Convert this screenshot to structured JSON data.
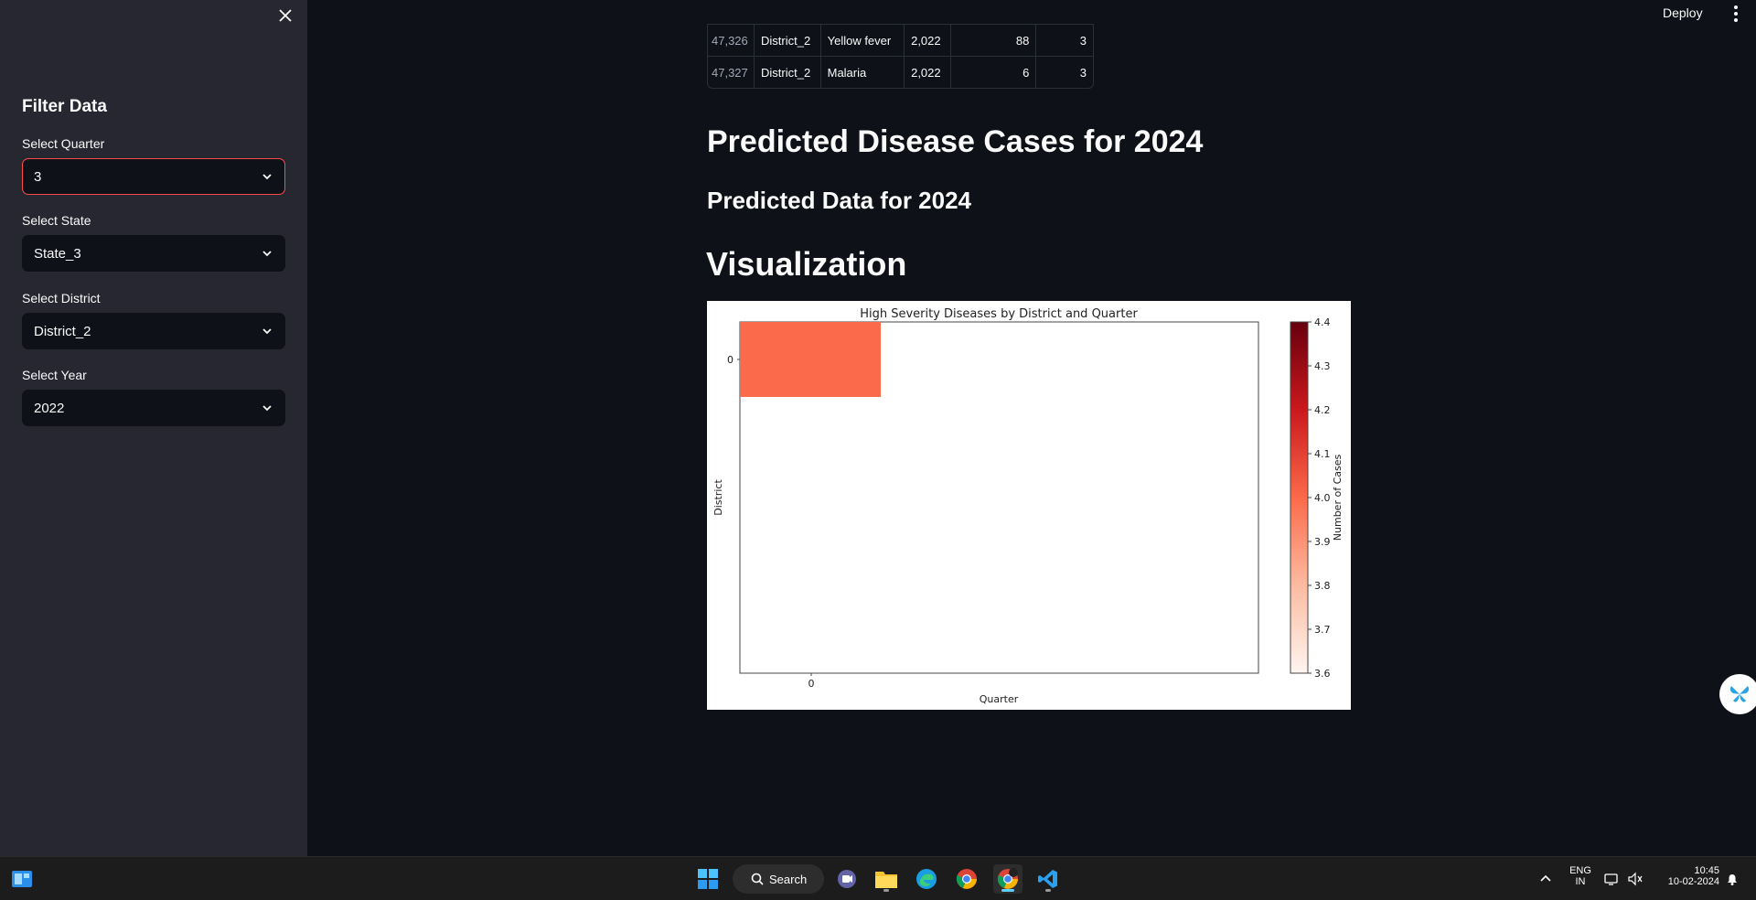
{
  "sidebar": {
    "title": "Filter Data",
    "fields": [
      {
        "label": "Select Quarter",
        "value": "3"
      },
      {
        "label": "Select State",
        "value": "State_3"
      },
      {
        "label": "Select District",
        "value": "District_2"
      },
      {
        "label": "Select Year",
        "value": "2022"
      }
    ]
  },
  "header": {
    "deploy_label": "Deploy"
  },
  "table": {
    "rows": [
      {
        "index": "47,326",
        "district": "District_2",
        "disease": "Yellow fever",
        "year": "2,022",
        "col5": "88",
        "col6": "3"
      },
      {
        "index": "47,327",
        "district": "District_2",
        "disease": "Malaria",
        "year": "2,022",
        "col5": "6",
        "col6": "3"
      }
    ]
  },
  "headings": {
    "predicted_cases": "Predicted Disease Cases for 2024",
    "predicted_data": "Predicted Data for 2024",
    "visualization": "Visualization"
  },
  "chart_data": {
    "type": "heatmap",
    "title": "High Severity Diseases by District and Quarter",
    "xlabel": "Quarter",
    "ylabel": "District",
    "x_ticks": [
      "0"
    ],
    "y_ticks": [
      "0"
    ],
    "cells": [
      {
        "x": "0",
        "y": "0",
        "value": 4.0,
        "color": "#fb6a4a"
      }
    ],
    "colorbar": {
      "label": "Number of Cases",
      "range": [
        3.6,
        4.4
      ],
      "ticks": [
        "3.6",
        "3.7",
        "3.8",
        "3.9",
        "4.0",
        "4.1",
        "4.2",
        "4.3",
        "4.4"
      ],
      "colormap": "Reds"
    }
  },
  "taskbar": {
    "search_label": "Search",
    "lang_top": "ENG",
    "lang_bottom": "IN",
    "time": "10:45",
    "date": "10-02-2024"
  },
  "colors": {
    "accent": "#ff4b4b",
    "app_bg": "#0e1117",
    "sidebar_bg": "#262730"
  }
}
